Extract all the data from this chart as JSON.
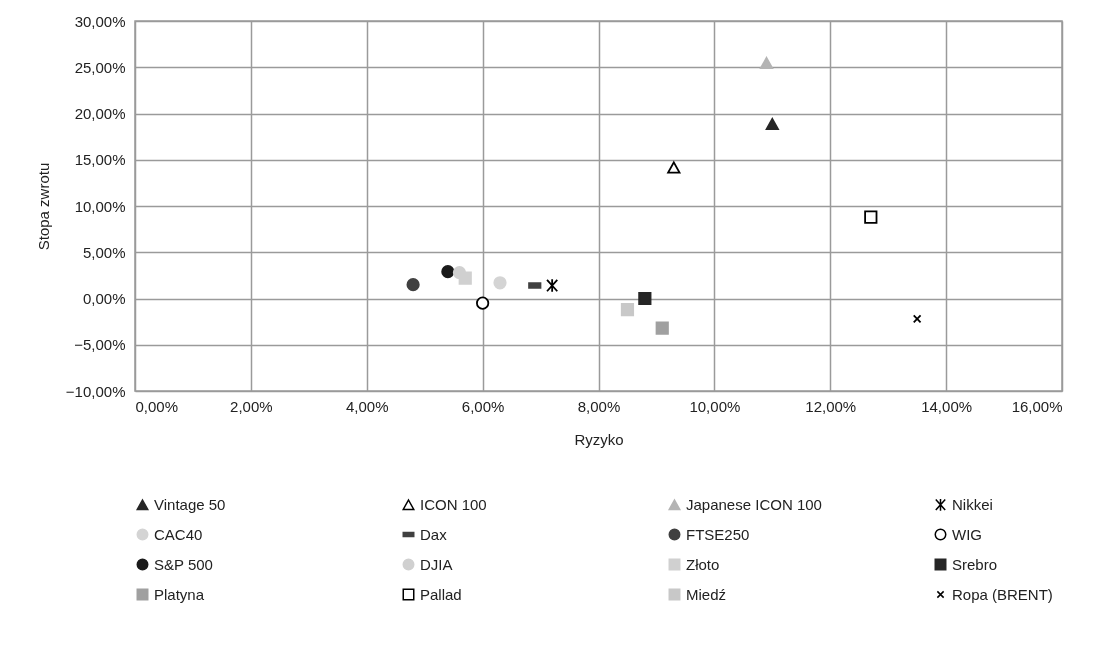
{
  "chart_data": {
    "type": "scatter",
    "xlabel": "Ryzyko",
    "ylabel": "Stopa zwrotu",
    "xlim": [
      0,
      16
    ],
    "ylim": [
      -10,
      30
    ],
    "xticks": [
      {
        "value": 0,
        "label": "0,00%"
      },
      {
        "value": 2,
        "label": "2,00%"
      },
      {
        "value": 4,
        "label": "4,00%"
      },
      {
        "value": 6,
        "label": "6,00%"
      },
      {
        "value": 8,
        "label": "8,00%"
      },
      {
        "value": 10,
        "label": "10,00%"
      },
      {
        "value": 12,
        "label": "12,00%"
      },
      {
        "value": 14,
        "label": "14,00%"
      },
      {
        "value": 16,
        "label": "16,00%"
      }
    ],
    "yticks": [
      {
        "value": -10,
        "label": "−10,00%"
      },
      {
        "value": -5,
        "label": "−5,00%"
      },
      {
        "value": 0,
        "label": "0,00%"
      },
      {
        "value": 5,
        "label": "5,00%"
      },
      {
        "value": 10,
        "label": "10,00%"
      },
      {
        "value": 15,
        "label": "15,00%"
      },
      {
        "value": 20,
        "label": "20,00%"
      },
      {
        "value": 25,
        "label": "25,00%"
      },
      {
        "value": 30,
        "label": "30,00%"
      }
    ],
    "grid": true,
    "legend": "bottom",
    "series": [
      {
        "name": "Vintage 50",
        "color": "#262626",
        "marker": "triangle",
        "x": [
          11.0
        ],
        "values": [
          18.8
        ]
      },
      {
        "name": "ICON 100",
        "color": "#000000",
        "marker": "triangle",
        "x": [
          9.3
        ],
        "values": [
          14.1
        ]
      },
      {
        "name": "Japanese ICON 100",
        "color": "#b4b4b4",
        "marker": "triangle",
        "x": [
          10.9
        ],
        "values": [
          25.4
        ]
      },
      {
        "name": "Nikkei",
        "color": "#000000",
        "marker": "cross",
        "x": [
          7.2
        ],
        "values": [
          1.4
        ]
      },
      {
        "name": "CAC40",
        "color": "#d4d4d4",
        "marker": "circle",
        "x": [
          6.3
        ],
        "values": [
          1.7
        ]
      },
      {
        "name": "Dax",
        "color": "#404040",
        "x": [
          6.9
        ],
        "values": [
          1.4
        ]
      },
      {
        "name": "FTSE250",
        "color": "#404040",
        "marker": "circle",
        "x": [
          4.8
        ],
        "values": [
          1.5
        ]
      },
      {
        "name": "WIG",
        "color": "#000000",
        "marker": "circle",
        "x": [
          6.0
        ],
        "values": [
          -0.5
        ]
      },
      {
        "name": "S&P 500",
        "color": "#1a1a1a",
        "marker": "circle",
        "x": [
          5.4
        ],
        "values": [
          2.9
        ]
      },
      {
        "name": "DJIA",
        "color": "#d0d0d0",
        "marker": "circle",
        "x": [
          5.6
        ],
        "values": [
          2.8
        ]
      },
      {
        "name": "Złoto",
        "color": "#d0d0d0",
        "marker": "square",
        "x": [
          5.7
        ],
        "values": [
          2.2
        ]
      },
      {
        "name": "Srebro",
        "color": "#262626",
        "marker": "square",
        "x": [
          8.8
        ],
        "values": [
          0.0
        ]
      },
      {
        "name": "Platyna",
        "color": "#a0a0a0",
        "marker": "square",
        "x": [
          9.1
        ],
        "values": [
          -3.2
        ]
      },
      {
        "name": "Pallad",
        "color": "#000000",
        "marker": "square",
        "x": [
          12.7
        ],
        "values": [
          8.8
        ]
      },
      {
        "name": "Miedź",
        "color": "#c8c8c8",
        "marker": "square",
        "x": [
          8.5
        ],
        "values": [
          -1.2
        ]
      },
      {
        "name": "Ropa (BRENT)",
        "color": "#000000",
        "marker": "cross",
        "x": [
          13.5
        ],
        "values": [
          -2.2
        ]
      }
    ]
  }
}
